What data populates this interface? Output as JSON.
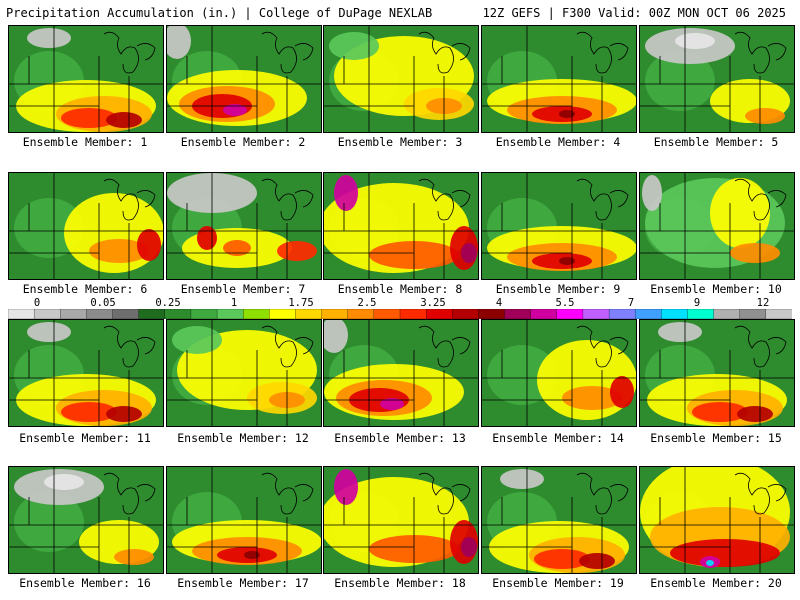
{
  "header": {
    "left": "Precipitation Accumulation (in.) | College of DuPage NEXLAB",
    "right": "12Z GEFS | F300 Valid: 00Z MON OCT 06 2025"
  },
  "panels": [
    {
      "label": "Ensemble Member: 1",
      "pattern": "south-heavy"
    },
    {
      "label": "Ensemble Member: 2",
      "pattern": "central-max"
    },
    {
      "label": "Ensemble Member: 3",
      "pattern": "broad-yellow"
    },
    {
      "label": "Ensemble Member: 4",
      "pattern": "south-band"
    },
    {
      "label": "Ensemble Member: 5",
      "pattern": "dry-north"
    },
    {
      "label": "Ensemble Member: 6",
      "pattern": "east-band"
    },
    {
      "label": "Ensemble Member: 7",
      "pattern": "west-cells"
    },
    {
      "label": "Ensemble Member: 8",
      "pattern": "wet-west-east"
    },
    {
      "label": "Ensemble Member: 9",
      "pattern": "south-band"
    },
    {
      "label": "Ensemble Member: 10",
      "pattern": "moderate"
    },
    {
      "label": "Ensemble Member: 11",
      "pattern": "south-heavy"
    },
    {
      "label": "Ensemble Member: 12",
      "pattern": "broad-yellow"
    },
    {
      "label": "Ensemble Member: 13",
      "pattern": "central-max"
    },
    {
      "label": "Ensemble Member: 14",
      "pattern": "east-band"
    },
    {
      "label": "Ensemble Member: 15",
      "pattern": "south-heavy"
    },
    {
      "label": "Ensemble Member: 16",
      "pattern": "dry-north"
    },
    {
      "label": "Ensemble Member: 17",
      "pattern": "south-band"
    },
    {
      "label": "Ensemble Member: 18",
      "pattern": "wet-west-east"
    },
    {
      "label": "Ensemble Member: 19",
      "pattern": "south-heavy"
    },
    {
      "label": "Ensemble Member: 20",
      "pattern": "very-wet"
    }
  ],
  "colorbar": {
    "ticks": [
      "0",
      "0.05",
      "0.25",
      "1",
      "1.75",
      "2.5",
      "3.25",
      "4",
      "5.5",
      "7",
      "9",
      "12"
    ],
    "colors": [
      "#e6e6e6",
      "#c8c8c8",
      "#a9a9a9",
      "#8c8c8c",
      "#6e6e6e",
      "#1f6b1f",
      "#2e8b2e",
      "#3fa83f",
      "#5bc85b",
      "#8fe000",
      "#ffff00",
      "#ffd700",
      "#ffb000",
      "#ff8c00",
      "#ff5a00",
      "#ff2a00",
      "#e00000",
      "#b40000",
      "#8b0000",
      "#a0005a",
      "#d000a0",
      "#ff00ff",
      "#c060ff",
      "#8080ff",
      "#40a0ff",
      "#00e0ff",
      "#00ffd0",
      "#b0b0b0",
      "#909090",
      "#c8c8c8"
    ]
  }
}
